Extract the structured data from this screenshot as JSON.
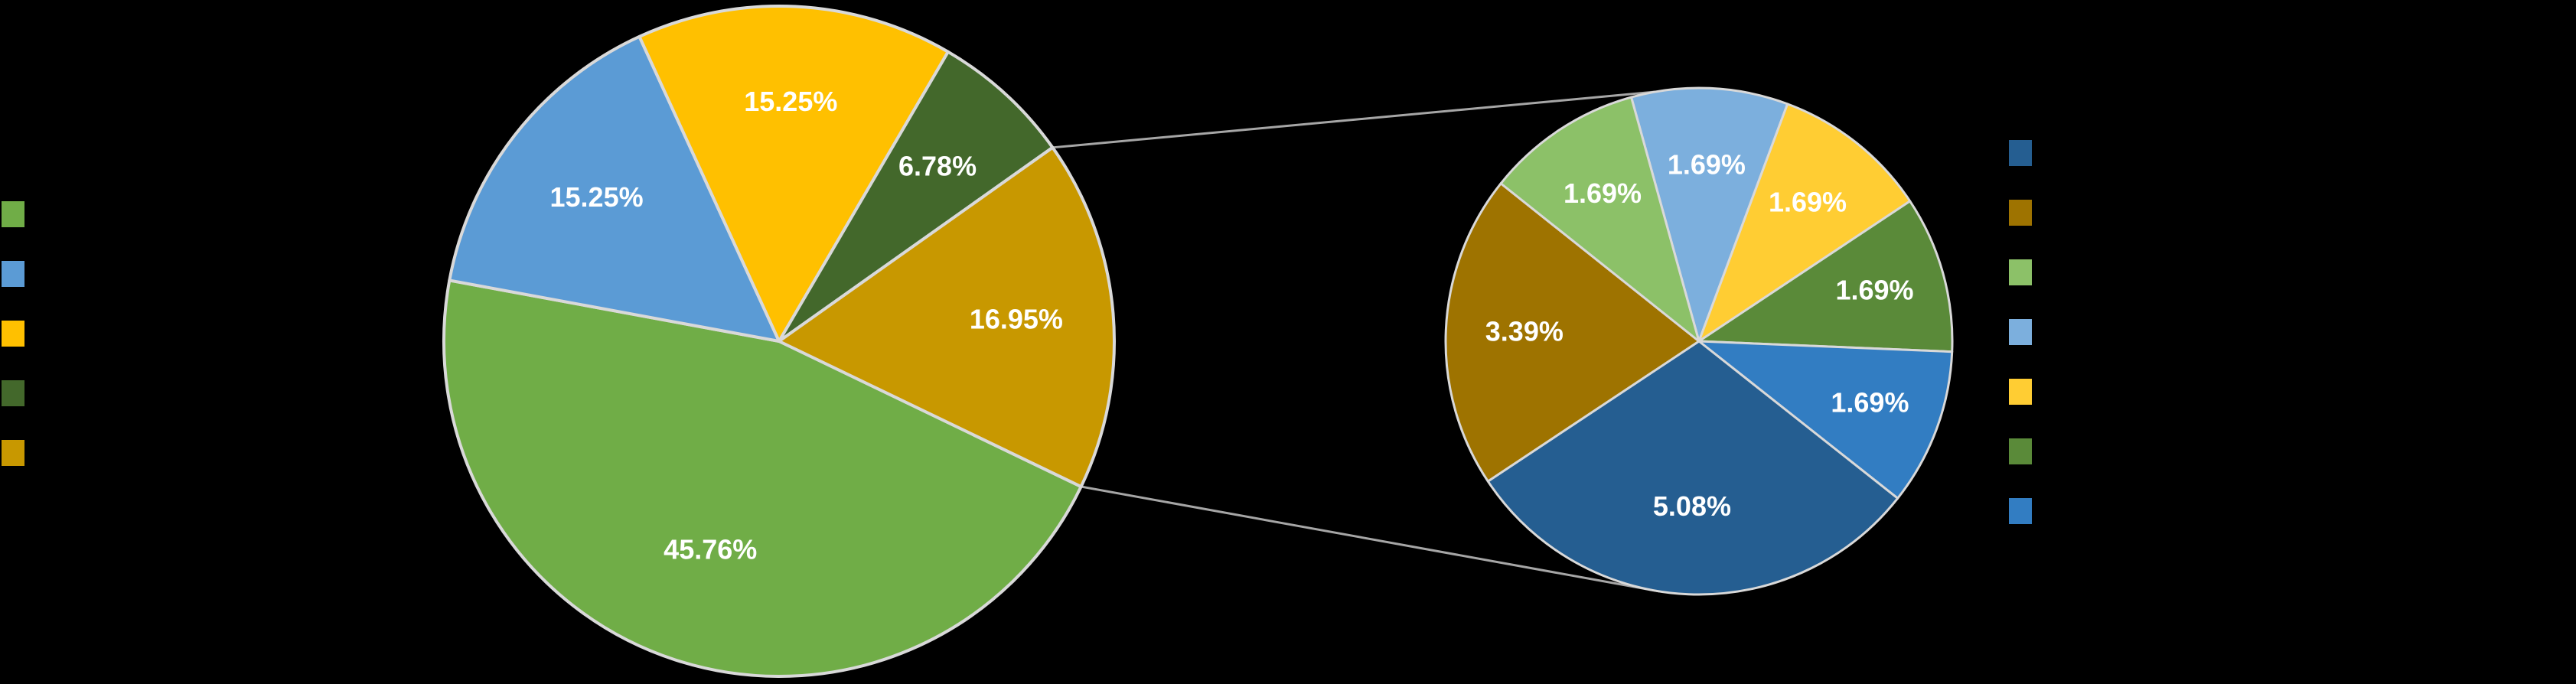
{
  "chart_data": {
    "type": "bar-of-pie",
    "main_pie": {
      "slices": [
        {
          "label": "",
          "value": 45.76,
          "display": "45.76%",
          "color": "#70AD47"
        },
        {
          "label": "",
          "value": 15.25,
          "display": "15.25%",
          "color": "#5B9BD5"
        },
        {
          "label": "",
          "value": 15.25,
          "display": "15.25%",
          "color": "#FFC000"
        },
        {
          "label": "",
          "value": 6.78,
          "display": "6.78%",
          "color": "#43682B"
        },
        {
          "label": "",
          "value": 16.95,
          "display": "16.95%",
          "color": "#C89800"
        }
      ],
      "legend": [
        {
          "label": "",
          "color": "#70AD47"
        },
        {
          "label": "",
          "color": "#5B9BD5"
        },
        {
          "label": "",
          "color": "#FFC000"
        },
        {
          "label": "",
          "color": "#43682B"
        },
        {
          "label": "",
          "color": "#C89800"
        }
      ],
      "legend_position": "left"
    },
    "secondary_pie": {
      "slices": [
        {
          "label": "",
          "value": 5.08,
          "display": "5.08%",
          "color": "#255E91"
        },
        {
          "label": "",
          "value": 3.39,
          "display": "3.39%",
          "color": "#9E7300"
        },
        {
          "label": "",
          "value": 1.69,
          "display": "1.69%",
          "color": "#8CC168"
        },
        {
          "label": "",
          "value": 1.69,
          "display": "1.69%",
          "color": "#7CAFDD"
        },
        {
          "label": "",
          "value": 1.69,
          "display": "1.69%",
          "color": "#FFCD33"
        },
        {
          "label": "",
          "value": 1.69,
          "display": "1.69%",
          "color": "#5A8A39"
        },
        {
          "label": "",
          "value": 1.69,
          "display": "1.69%",
          "color": "#327DC2"
        }
      ],
      "legend": [
        {
          "label": "",
          "color": "#255E91"
        },
        {
          "label": "",
          "color": "#9E7300"
        },
        {
          "label": "",
          "color": "#8CC168"
        },
        {
          "label": "",
          "color": "#7CAFDD"
        },
        {
          "label": "",
          "color": "#FFCD33"
        },
        {
          "label": "",
          "color": "#5A8A39"
        },
        {
          "label": "",
          "color": "#327DC2"
        }
      ],
      "legend_position": "right"
    },
    "background": "#000000",
    "slice_border_color": "#D9D9D9",
    "connector_color": "#A6A6A6",
    "label_color": "#FFFFFF"
  }
}
